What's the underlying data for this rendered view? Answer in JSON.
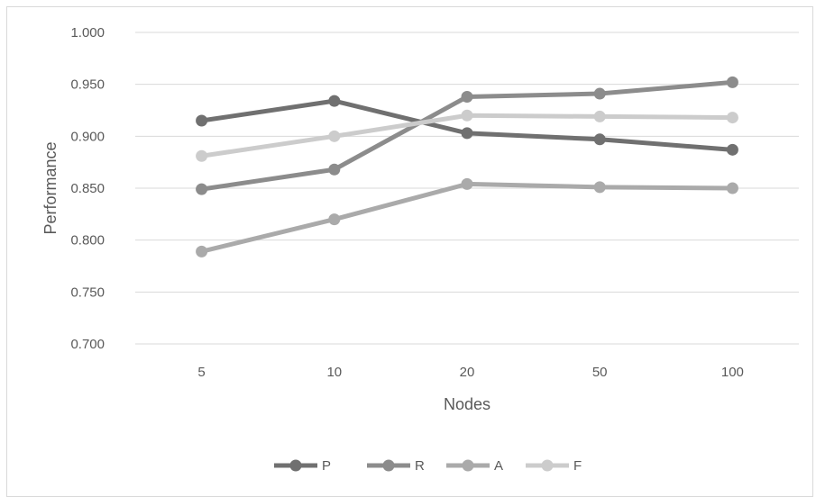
{
  "chart_data": {
    "type": "line",
    "title": "",
    "xlabel": "Nodes",
    "ylabel": "Performance",
    "categories": [
      "5",
      "10",
      "20",
      "50",
      "100"
    ],
    "ylim": [
      0.7,
      1.0
    ],
    "yticks": [
      "0.700",
      "0.750",
      "0.800",
      "0.850",
      "0.900",
      "0.950",
      "1.000"
    ],
    "grid": "horizontal",
    "legend_position": "bottom",
    "series": [
      {
        "name": "P",
        "color": "#707070",
        "values": [
          0.915,
          0.934,
          0.903,
          0.897,
          0.887
        ]
      },
      {
        "name": "R",
        "color": "#8c8c8c",
        "values": [
          0.849,
          0.868,
          0.938,
          0.941,
          0.952
        ]
      },
      {
        "name": "A",
        "color": "#aaaaaa",
        "values": [
          0.789,
          0.82,
          0.854,
          0.851,
          0.85
        ]
      },
      {
        "name": "F",
        "color": "#cccccc",
        "values": [
          0.881,
          0.9,
          0.92,
          0.919,
          0.918
        ]
      }
    ]
  }
}
